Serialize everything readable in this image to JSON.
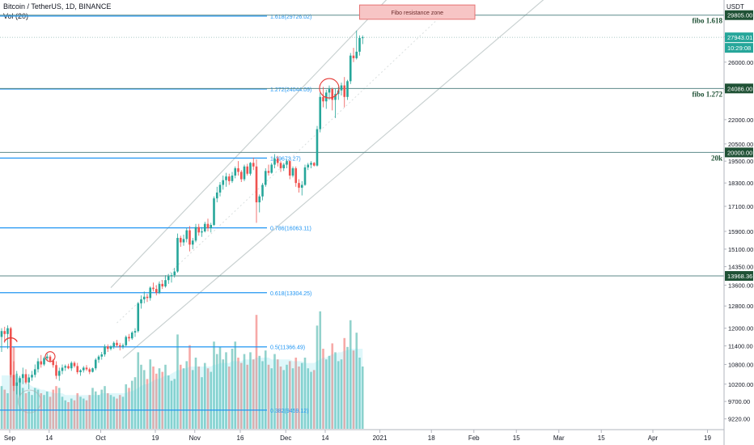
{
  "header": {
    "title": "Bitcoin / TetherUS, 1D, BINANCE",
    "volume_label": "Vol (20)",
    "currency": "USDT"
  },
  "colors": {
    "up": "#26a69a",
    "down": "#ef5350",
    "fib_line": "#2196f3",
    "fib_text": "#2196f3",
    "hline": "#5d8a8a",
    "channel": "#c9d1d1",
    "price_tag": "#26a69a",
    "level_tag_dark": "#1f5135",
    "resistance_fill": "#f7c5c5",
    "resistance_border": "#e57373",
    "circle": "#e53935"
  },
  "chart_data": {
    "type": "candlestick",
    "y_scale": "log",
    "y_ticks": [
      9220,
      9700,
      10200,
      10800,
      11400,
      12000,
      12800,
      13600,
      14350,
      15100,
      15900,
      17100,
      18300,
      19500,
      20500,
      22000,
      24000,
      26000,
      28000
    ],
    "y_tick_labels": [
      "9220.00",
      "9700.00",
      "10200.00",
      "10800.00",
      "11400.00",
      "12000.00",
      "12800.00",
      "13600.00",
      "14350.00",
      "15100.00",
      "15900.00",
      "17100.00",
      "18300.00",
      "19500.00",
      "20500.00",
      "22000.00",
      "24000.00",
      "26000.00",
      "28000.00"
    ],
    "x_ticks": [
      {
        "label": "Sep",
        "idx": 0
      },
      {
        "label": "14",
        "idx": 13
      },
      {
        "label": "Oct",
        "idx": 30
      },
      {
        "label": "19",
        "idx": 48
      },
      {
        "label": "Nov",
        "idx": 61
      },
      {
        "label": "16",
        "idx": 76
      },
      {
        "label": "Dec",
        "idx": 91
      },
      {
        "label": "14",
        "idx": 104
      },
      {
        "label": "2021",
        "idx": 122
      },
      {
        "label": "18",
        "idx": 139
      },
      {
        "label": "Feb",
        "idx": 153
      },
      {
        "label": "15",
        "idx": 167
      },
      {
        "label": "Mar",
        "idx": 181
      },
      {
        "label": "15",
        "idx": 195
      },
      {
        "label": "Apr",
        "idx": 212
      },
      {
        "label": "19",
        "idx": 230
      }
    ],
    "fib_levels": [
      {
        "ratio": "0.382",
        "value": 9459.12,
        "label": "0.382(9459.12)"
      },
      {
        "ratio": "0.5",
        "value": 11366.49,
        "label": "0.5(11366.49)"
      },
      {
        "ratio": "0.618",
        "value": 13304.25,
        "label": "0.618(13304.25)"
      },
      {
        "ratio": "0.786",
        "value": 16063.11,
        "label": "0.786(16063.11)"
      },
      {
        "ratio": "1",
        "value": 19673.27,
        "label": "1(19673.27)"
      },
      {
        "ratio": "1.272",
        "value": 24044.09,
        "label": "1.272(24044.09)"
      },
      {
        "ratio": "1.618",
        "value": 29726.02,
        "label": "1.618(29726.02)"
      }
    ],
    "horizontal_levels": [
      {
        "value": 29805,
        "tag": "29805.00",
        "note": "fibo 1.618"
      },
      {
        "value": 24086,
        "tag": "24086.00",
        "note": "fibo 1.272"
      },
      {
        "value": 20000,
        "tag": "20000.00",
        "note": "20k"
      },
      {
        "value": 13968.36,
        "tag": "13968.36",
        "note": ""
      }
    ],
    "current_price": {
      "value": 27943.01,
      "label": "27943.01",
      "countdown": "10:29:08"
    },
    "resistance_zone": {
      "label": "Fibo resistance zone",
      "x_start_idx": 118,
      "x_end_idx": 156,
      "top": 30700,
      "bottom": 29450
    },
    "channel_lines": [
      {
        "from": {
          "idx": 36,
          "value": 13500
        },
        "to": {
          "idx": 128,
          "value": 31500
        }
      },
      {
        "from": {
          "idx": 40,
          "value": 11000
        },
        "to": {
          "idx": 180,
          "value": 31500
        }
      }
    ],
    "circles": [
      {
        "idx": 3,
        "value": 11700,
        "shape": "arc"
      },
      {
        "idx": 16,
        "value": 11050,
        "shape": "ring"
      },
      {
        "idx": 6,
        "value": 9700,
        "shape": "ring-faint"
      },
      {
        "idx": 108,
        "value": 24100,
        "shape": "ring"
      }
    ],
    "candles_start_idx": 0,
    "candles": [
      [
        11700,
        12000,
        11200,
        11900
      ],
      [
        11900,
        12050,
        11500,
        11800
      ],
      [
        11800,
        12100,
        11300,
        12000
      ],
      [
        12000,
        12050,
        10400,
        10480
      ],
      [
        10480,
        10900,
        10000,
        10150
      ],
      [
        10150,
        10600,
        9900,
        10250
      ],
      [
        10250,
        10450,
        9850,
        10380
      ],
      [
        10380,
        10700,
        10200,
        10500
      ],
      [
        10500,
        10650,
        10200,
        10250
      ],
      [
        10250,
        10500,
        10050,
        10400
      ],
      [
        10400,
        10600,
        10300,
        10480
      ],
      [
        10480,
        10800,
        10400,
        10650
      ],
      [
        10650,
        11000,
        10550,
        10900
      ],
      [
        10900,
        11100,
        10700,
        10800
      ],
      [
        10800,
        11050,
        10750,
        11000
      ],
      [
        11000,
        11150,
        10900,
        11050
      ],
      [
        11050,
        11100,
        10850,
        10920
      ],
      [
        10920,
        10980,
        10700,
        10780
      ],
      [
        10780,
        10900,
        10350,
        10450
      ],
      [
        10450,
        10700,
        10300,
        10600
      ],
      [
        10600,
        10800,
        10500,
        10700
      ],
      [
        10700,
        10800,
        10600,
        10750
      ],
      [
        10750,
        10820,
        10650,
        10680
      ],
      [
        10680,
        10900,
        10600,
        10850
      ],
      [
        10850,
        10900,
        10700,
        10750
      ],
      [
        10750,
        10850,
        10500,
        10560
      ],
      [
        10560,
        10650,
        10450,
        10620
      ],
      [
        10620,
        10750,
        10550,
        10700
      ],
      [
        10700,
        10780,
        10600,
        10650
      ],
      [
        10650,
        10700,
        10500,
        10570
      ],
      [
        10570,
        10700,
        10550,
        10680
      ],
      [
        10680,
        11000,
        10620,
        10950
      ],
      [
        10950,
        11100,
        10850,
        11050
      ],
      [
        11050,
        11200,
        10950,
        11120
      ],
      [
        11120,
        11450,
        11050,
        11380
      ],
      [
        11380,
        11450,
        11200,
        11300
      ],
      [
        11300,
        11420,
        11250,
        11380
      ],
      [
        11380,
        11550,
        11300,
        11500
      ],
      [
        11500,
        11600,
        11350,
        11420
      ],
      [
        11420,
        11500,
        11250,
        11380
      ],
      [
        11380,
        11480,
        11300,
        11420
      ],
      [
        11420,
        11750,
        11380,
        11700
      ],
      [
        11700,
        11800,
        11550,
        11650
      ],
      [
        11650,
        11900,
        11600,
        11850
      ],
      [
        11850,
        12000,
        11700,
        11900
      ],
      [
        11900,
        12950,
        11850,
        12900
      ],
      [
        12900,
        13200,
        12700,
        13050
      ],
      [
        13050,
        13350,
        12900,
        13150
      ],
      [
        13150,
        13250,
        12950,
        13100
      ],
      [
        13100,
        13550,
        13000,
        13500
      ],
      [
        13500,
        13700,
        13350,
        13450
      ],
      [
        13450,
        13600,
        13200,
        13300
      ],
      [
        13300,
        13750,
        13250,
        13650
      ],
      [
        13650,
        13800,
        13450,
        13550
      ],
      [
        13550,
        14000,
        13500,
        13800
      ],
      [
        13800,
        14050,
        13650,
        13950
      ],
      [
        13950,
        14100,
        13700,
        14000
      ],
      [
        14000,
        14300,
        13900,
        14150
      ],
      [
        14150,
        15800,
        14100,
        15600
      ],
      [
        15600,
        15700,
        15200,
        15400
      ],
      [
        15400,
        15750,
        15250,
        15550
      ],
      [
        15550,
        16050,
        15400,
        15950
      ],
      [
        15950,
        16150,
        15000,
        15300
      ],
      [
        15300,
        15600,
        15100,
        15480
      ],
      [
        15480,
        16250,
        15400,
        16100
      ],
      [
        16100,
        16250,
        15700,
        15850
      ],
      [
        15850,
        16100,
        15650,
        15900
      ],
      [
        15900,
        16350,
        15850,
        16250
      ],
      [
        16250,
        16500,
        15900,
        16050
      ],
      [
        16050,
        16300,
        15850,
        16200
      ],
      [
        16200,
        17600,
        16150,
        17500
      ],
      [
        17500,
        18100,
        17300,
        17800
      ],
      [
        17800,
        18350,
        17600,
        18200
      ],
      [
        18200,
        18700,
        17950,
        18450
      ],
      [
        18450,
        18850,
        18100,
        18650
      ],
      [
        18650,
        18800,
        18200,
        18400
      ],
      [
        18400,
        18900,
        18300,
        18700
      ],
      [
        18700,
        19200,
        18550,
        19100
      ],
      [
        19100,
        19500,
        18700,
        18900
      ],
      [
        18900,
        19000,
        18350,
        18500
      ],
      [
        18500,
        19300,
        18400,
        19200
      ],
      [
        19200,
        19350,
        18700,
        18800
      ],
      [
        18800,
        19450,
        18700,
        19400
      ],
      [
        19400,
        19700,
        19000,
        19200
      ],
      [
        19200,
        19600,
        16300,
        17300
      ],
      [
        17300,
        17700,
        16800,
        17600
      ],
      [
        17600,
        18300,
        17400,
        18200
      ],
      [
        18200,
        19100,
        18100,
        18950
      ],
      [
        18950,
        19300,
        18700,
        18850
      ],
      [
        18850,
        19400,
        18800,
        19300
      ],
      [
        19300,
        19900,
        19100,
        19650
      ],
      [
        19650,
        19800,
        19200,
        19400
      ],
      [
        19400,
        19500,
        18900,
        19100
      ],
      [
        19100,
        19400,
        18950,
        19300
      ],
      [
        19300,
        19600,
        19100,
        19500
      ],
      [
        19500,
        19550,
        18500,
        18700
      ],
      [
        18700,
        19200,
        18600,
        19100
      ],
      [
        19100,
        19200,
        18100,
        18300
      ],
      [
        18300,
        18500,
        17800,
        18050
      ],
      [
        18050,
        18400,
        17650,
        18200
      ],
      [
        18200,
        19300,
        18150,
        19150
      ],
      [
        19150,
        19400,
        19000,
        19300
      ],
      [
        19300,
        19500,
        19100,
        19400
      ],
      [
        19400,
        19450,
        19200,
        19250
      ],
      [
        19250,
        21600,
        19200,
        21400
      ],
      [
        21400,
        23800,
        21200,
        23500
      ],
      [
        23500,
        24200,
        22800,
        23200
      ],
      [
        23200,
        24000,
        22700,
        23800
      ],
      [
        23800,
        24300,
        23300,
        24050
      ],
      [
        24050,
        24150,
        22600,
        23300
      ],
      [
        23300,
        24100,
        22100,
        23700
      ],
      [
        23700,
        24200,
        23300,
        23950
      ],
      [
        23950,
        24500,
        23600,
        24300
      ],
      [
        24300,
        24900,
        22800,
        23500
      ],
      [
        23500,
        24700,
        23300,
        24600
      ],
      [
        24600,
        26700,
        24400,
        26500
      ],
      [
        26500,
        27100,
        26000,
        26300
      ],
      [
        26300,
        28500,
        26200,
        26800
      ],
      [
        26800,
        28100,
        26500,
        27900
      ],
      [
        27900,
        28100,
        27400,
        27943.01
      ]
    ],
    "volumes": [
      2.4,
      2.2,
      2.0,
      3.6,
      4.6,
      3.1,
      2.8,
      2.3,
      2.0,
      2.1,
      1.9,
      2.3,
      2.2,
      2.0,
      1.9,
      2.1,
      1.8,
      2.2,
      2.4,
      2.3,
      1.8,
      1.6,
      1.5,
      1.7,
      1.6,
      2.0,
      1.8,
      1.7,
      1.6,
      1.9,
      2.3,
      2.1,
      1.9,
      2.2,
      2.4,
      2.0,
      1.9,
      1.8,
      1.7,
      1.9,
      1.8,
      2.5,
      2.3,
      2.7,
      2.9,
      4.3,
      3.6,
      3.3,
      2.8,
      3.9,
      3.5,
      3.1,
      3.4,
      3.2,
      3.6,
      3.0,
      2.7,
      2.8,
      5.3,
      3.6,
      3.4,
      3.8,
      4.7,
      3.3,
      4.0,
      3.5,
      2.9,
      3.7,
      3.4,
      3.2,
      4.9,
      4.2,
      4.6,
      3.9,
      4.3,
      3.5,
      4.5,
      4.9,
      4.0,
      3.7,
      4.2,
      3.6,
      4.3,
      3.9,
      6.4,
      4.1,
      3.8,
      4.4,
      3.6,
      3.4,
      4.2,
      3.9,
      3.5,
      3.3,
      3.6,
      3.8,
      3.4,
      4.0,
      3.5,
      3.7,
      4.0,
      3.4,
      3.2,
      3.3,
      5.8,
      6.6,
      4.5,
      3.9,
      4.1,
      4.8,
      4.3,
      3.8,
      3.9,
      5.1,
      4.6,
      6.1,
      4.4,
      5.4,
      4.0,
      3.5
    ],
    "volume_ma": [
      3.0,
      3.0,
      3.0,
      3.0,
      3.0,
      3.0,
      2.9,
      2.8,
      2.6,
      2.5,
      2.4,
      2.3,
      2.3,
      2.2,
      2.2,
      2.1,
      2.1,
      2.0,
      2.0,
      2.0,
      2.0,
      1.9,
      1.9,
      1.9,
      1.9,
      1.9,
      1.9,
      1.9,
      1.9,
      1.9,
      1.9,
      1.9,
      1.9,
      2.0,
      2.0,
      2.0,
      2.0,
      2.0,
      2.0,
      2.0,
      2.0,
      2.0,
      2.1,
      2.1,
      2.2,
      2.3,
      2.4,
      2.5,
      2.5,
      2.6,
      2.7,
      2.8,
      2.8,
      2.9,
      3.0,
      3.0,
      3.1,
      3.2,
      3.3,
      3.3,
      3.4,
      3.4,
      3.5,
      3.5,
      3.5,
      3.5,
      3.5,
      3.5,
      3.5,
      3.5,
      3.6,
      3.6,
      3.7,
      3.7,
      3.7,
      3.7,
      3.8,
      3.8,
      3.8,
      3.8,
      3.9,
      3.9,
      3.9,
      3.9,
      4.0,
      4.0,
      4.0,
      4.0,
      4.0,
      3.9,
      3.9,
      3.9,
      3.9,
      3.9,
      3.9,
      3.9,
      3.8,
      3.8,
      3.8,
      3.8,
      3.7,
      3.7,
      3.7,
      3.7,
      3.8,
      3.9,
      4.0,
      4.0,
      4.1,
      4.2,
      4.2,
      4.3,
      4.3,
      4.4,
      4.4,
      4.5,
      4.5,
      4.5,
      4.5,
      4.5
    ]
  }
}
